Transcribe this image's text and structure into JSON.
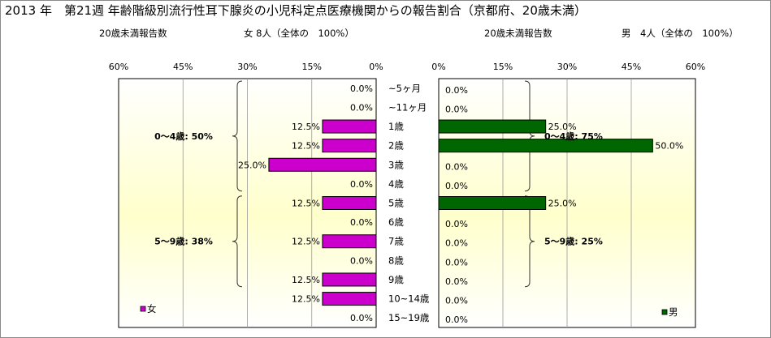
{
  "header": {
    "title": "2013 年　第21週 年齢階級別流行性耳下腺炎の小児科定点医療機関からの報告割合（京都府、20歳未満）",
    "female_count_label": "20歳未満報告数",
    "female_count_value": "女 8人（全体の　100%）",
    "male_count_label": "20歳未満報告数",
    "male_count_value": "男　4人（全体の　100%）"
  },
  "chart_data": {
    "type": "bar",
    "orientation": "horizontal-butterfly",
    "categories": [
      "~5ヶ月",
      "~11ヶ月",
      "1歳",
      "2歳",
      "3歳",
      "4歳",
      "5歳",
      "6歳",
      "7歳",
      "8歳",
      "9歳",
      "10~14歳",
      "15~19歳"
    ],
    "axis_min": 0,
    "axis_max": 60,
    "left_ticks": [
      "60%",
      "45%",
      "30%",
      "15%",
      "0%"
    ],
    "right_ticks": [
      "0%",
      "15%",
      "30%",
      "45%",
      "60%"
    ],
    "grid": true,
    "series": [
      {
        "name": "女",
        "side": "left",
        "color": "#cc00cc",
        "values": [
          0.0,
          0.0,
          12.5,
          12.5,
          25.0,
          0.0,
          12.5,
          0.0,
          12.5,
          0.0,
          12.5,
          12.5,
          0.0
        ],
        "labels": [
          "0.0%",
          "0.0%",
          "12.5%",
          "12.5%",
          "25.0%",
          "0.0%",
          "12.5%",
          "0.0%",
          "12.5%",
          "0.0%",
          "12.5%",
          "12.5%",
          "0.0%"
        ],
        "groups": [
          {
            "label": "0～4歳: 50%",
            "from": 0,
            "to": 5
          },
          {
            "label": "5～9歳: 38%",
            "from": 6,
            "to": 10
          }
        ]
      },
      {
        "name": "男",
        "side": "right",
        "color": "#006600",
        "values": [
          0.0,
          0.0,
          25.0,
          50.0,
          0.0,
          0.0,
          25.0,
          0.0,
          0.0,
          0.0,
          0.0,
          0.0,
          0.0
        ],
        "labels": [
          "0.0%",
          "0.0%",
          "25.0%",
          "50.0%",
          "0.0%",
          "0.0%",
          "25.0%",
          "0.0%",
          "0.0%",
          "0.0%",
          "0.0%",
          "0.0%",
          "0.0%"
        ],
        "groups": [
          {
            "label": "0～4歳: 75%",
            "from": 0,
            "to": 5
          },
          {
            "label": "5～9歳: 25%",
            "from": 6,
            "to": 10
          }
        ]
      }
    ]
  },
  "colors": {
    "panel_top": "#ffffff",
    "panel_mid": "#ffffcc",
    "panel_bottom": "#ffffff"
  }
}
